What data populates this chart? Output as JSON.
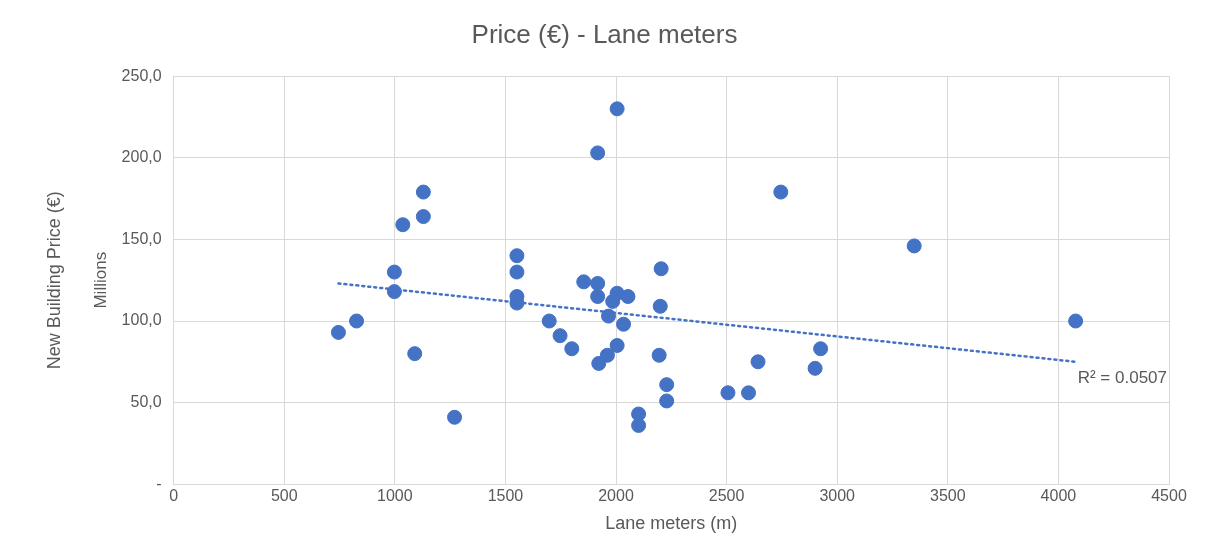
{
  "chart_data": {
    "type": "scatter",
    "title": "Price (€) - Lane meters",
    "xlabel": "Lane meters (m)",
    "ylabel": "New Building Price (€)",
    "annotations": [
      "Millions",
      "R² = 0.0507"
    ],
    "series": [
      {
        "color": "#4472c4",
        "x": [
          745,
          827,
          998,
          998,
          1036,
          1090,
          1129,
          1129,
          1270,
          1552,
          1552,
          1552,
          1552,
          1698,
          1747,
          1800,
          1854,
          1917,
          1917,
          1922,
          1961,
          1985,
          1966,
          2005,
          2010,
          2034,
          2005,
          2054,
          2005,
          1917,
          2102,
          2102,
          2204,
          2200,
          2195,
          2229,
          2229,
          2506,
          2599,
          2642,
          2745,
          2925,
          2900,
          3348,
          4078
        ],
        "values": [
          93,
          100,
          130,
          118,
          159,
          80,
          179,
          164,
          41,
          140,
          130,
          115,
          111,
          100,
          91,
          83,
          124,
          123,
          115,
          74,
          79,
          112,
          103,
          85,
          null,
          98,
          117,
          115,
          230,
          203,
          43,
          36,
          132,
          109,
          79,
          61,
          51,
          56,
          56,
          75,
          179,
          83,
          71,
          146,
          100
        ]
      },
      {
        "type": "line",
        "color": "#4472c4",
        "line_style": "dotted",
        "marker": "none",
        "x": [
          745,
          4078
        ],
        "values": [
          123,
          75
        ]
      }
    ],
    "marker": "circle",
    "grid": true,
    "legend": false,
    "xlim": [
      0,
      4500
    ],
    "xticks": [
      0,
      500,
      1000,
      1500,
      2000,
      2500,
      3000,
      3500,
      4000,
      4500
    ],
    "ylim": [
      0,
      250
    ],
    "yticks": [
      {
        "value": 0,
        "label": "-"
      },
      {
        "value": 50,
        "label": "50,0"
      },
      {
        "value": 100,
        "label": "100,0"
      },
      {
        "value": 150,
        "label": "150,0"
      },
      {
        "value": 200,
        "label": "200,0"
      },
      {
        "value": 250,
        "label": "250,0"
      }
    ]
  }
}
